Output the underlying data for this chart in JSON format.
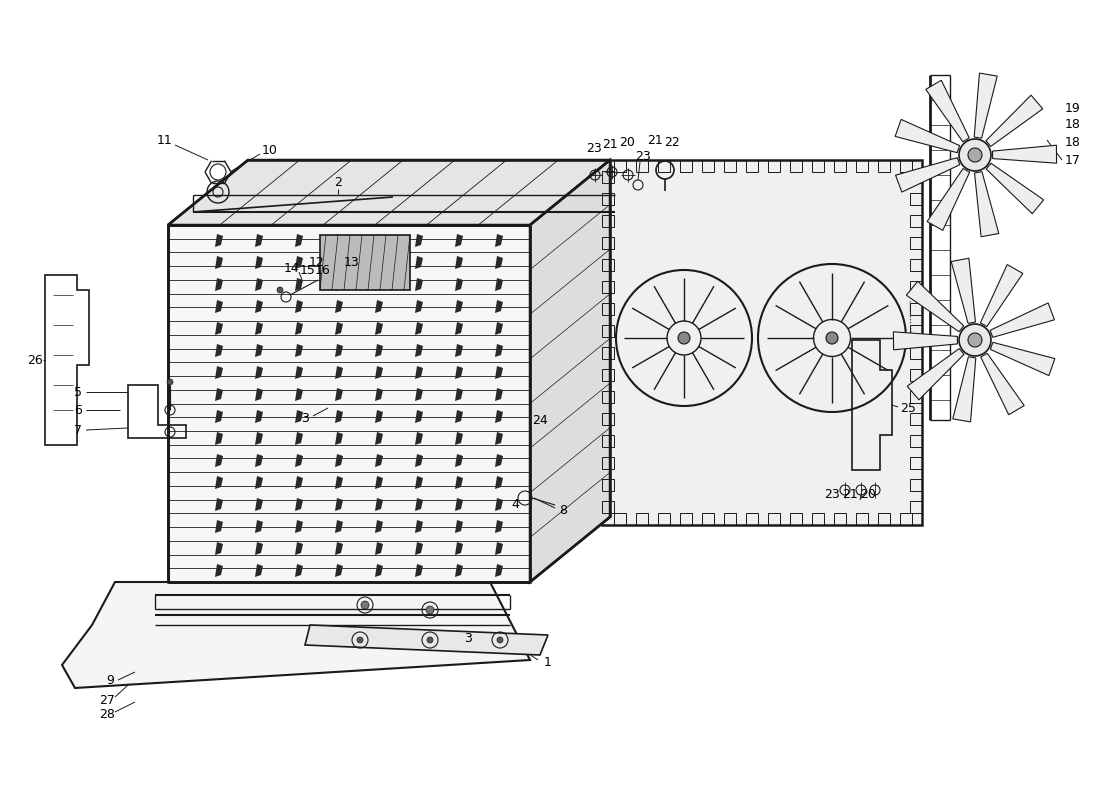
{
  "bg_color": "#ffffff",
  "line_color": "#1a1a1a",
  "fig_width": 11.0,
  "fig_height": 8.0,
  "dpi": 100,
  "wm_gray": "#bbbbbb",
  "wm_yellow": "#cccc00"
}
